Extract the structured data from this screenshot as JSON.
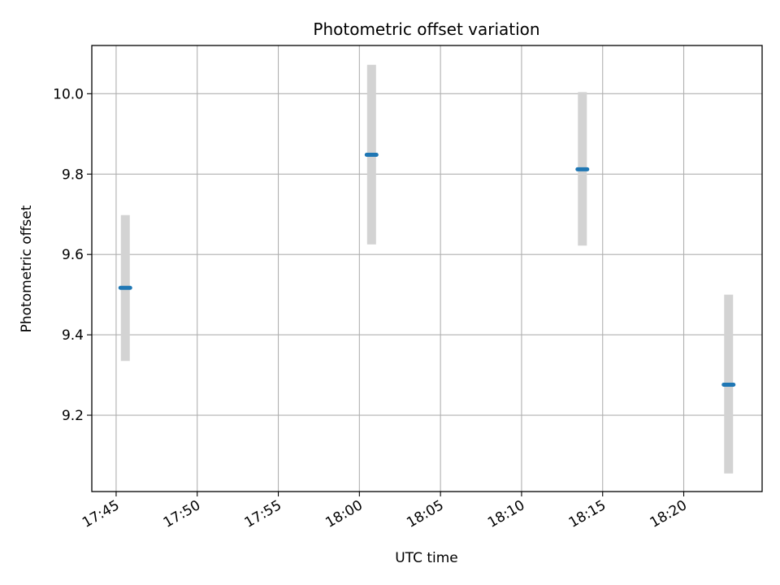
{
  "chart_data": {
    "type": "scatter",
    "title": "Photometric offset variation",
    "xlabel": "UTC time",
    "ylabel": "Photometric offset",
    "x_ticks": [
      "17:45",
      "17:50",
      "17:55",
      "18:00",
      "18:05",
      "18:10",
      "18:15",
      "18:20"
    ],
    "y_ticks": [
      9.2,
      9.4,
      9.6,
      9.8,
      10.0
    ],
    "y_tick_labels": [
      "9.2",
      "9.4",
      "9.6",
      "9.8",
      "10.0"
    ],
    "xlim": [
      "17:43:30",
      "18:24:50"
    ],
    "ylim": [
      9.01,
      10.12
    ],
    "grid": true,
    "points": [
      {
        "time": "17:45:34",
        "y": 9.517,
        "err_low": 9.335,
        "err_high": 9.698
      },
      {
        "time": "18:00:45",
        "y": 9.848,
        "err_low": 9.625,
        "err_high": 10.072
      },
      {
        "time": "18:13:45",
        "y": 9.812,
        "err_low": 9.622,
        "err_high": 10.004
      },
      {
        "time": "18:22:46",
        "y": 9.276,
        "err_low": 9.055,
        "err_high": 9.5
      }
    ],
    "colors": {
      "point": "#1f77b4",
      "error_bar": "#d3d3d3",
      "grid": "#b0b0b0"
    }
  }
}
